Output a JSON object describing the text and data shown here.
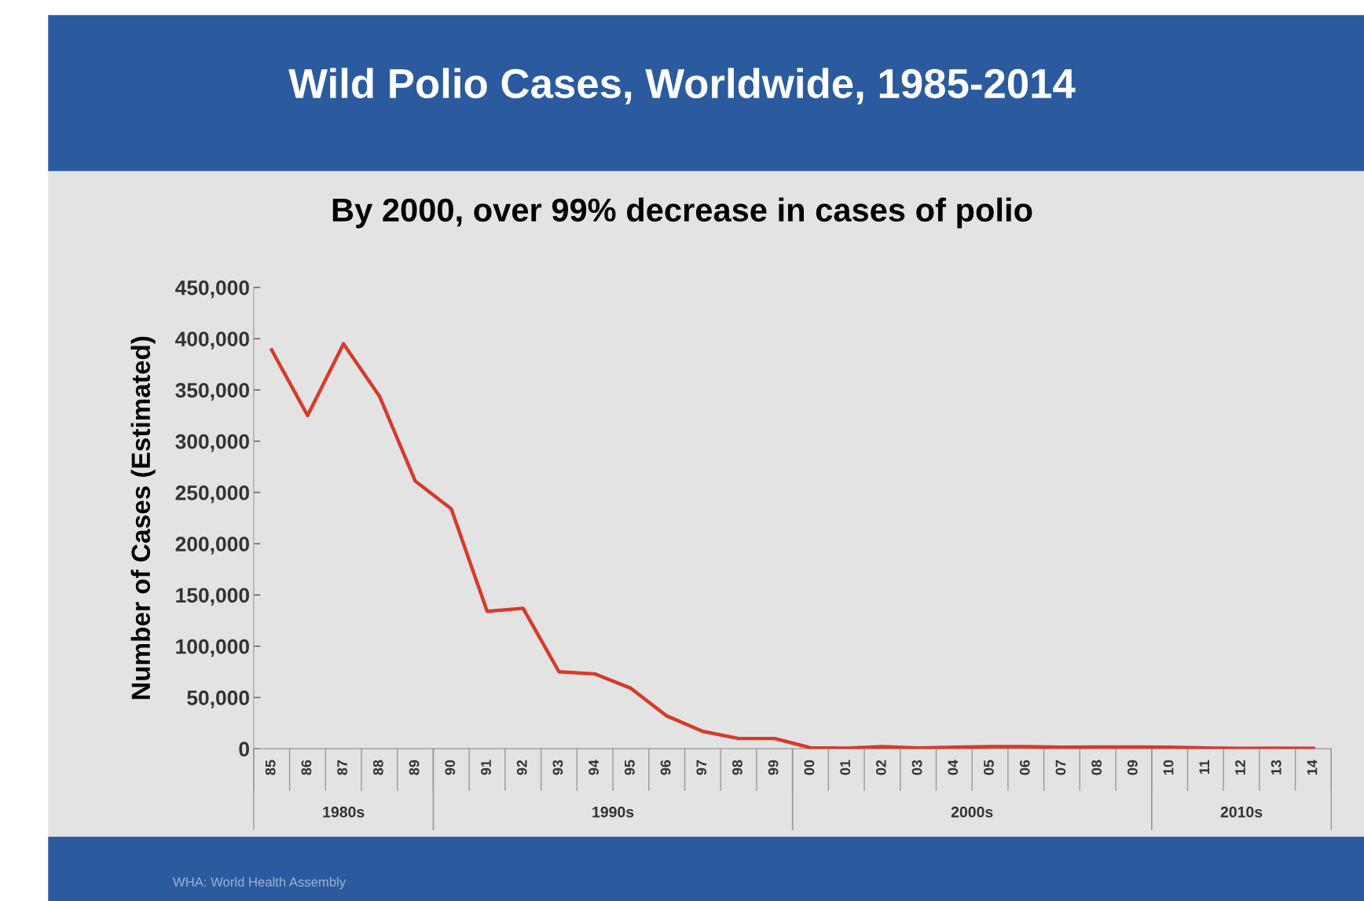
{
  "chart_data": {
    "type": "line",
    "title": "Wild Polio Cases, Worldwide, 1985-2014",
    "subtitle": "By 2000, over 99% decrease in cases of polio",
    "ylabel": "Number of Cases (Estimated)",
    "x": [
      1985,
      1986,
      1987,
      1988,
      1989,
      1990,
      1991,
      1992,
      1993,
      1994,
      1995,
      1996,
      1997,
      1998,
      1999,
      2000,
      2001,
      2002,
      2003,
      2004,
      2005,
      2006,
      2007,
      2008,
      2009,
      2010,
      2011,
      2012,
      2013,
      2014
    ],
    "xlim": [
      1984.5,
      2014.5
    ],
    "xticks": [
      {
        "value": 1985,
        "label": "85"
      },
      {
        "value": 1986,
        "label": "86"
      },
      {
        "value": 1987,
        "label": "87"
      },
      {
        "value": 1988,
        "label": "88"
      },
      {
        "value": 1989,
        "label": "89"
      },
      {
        "value": 1990,
        "label": "90"
      },
      {
        "value": 1991,
        "label": "91"
      },
      {
        "value": 1992,
        "label": "92"
      },
      {
        "value": 1993,
        "label": "93"
      },
      {
        "value": 1994,
        "label": "94"
      },
      {
        "value": 1995,
        "label": "95"
      },
      {
        "value": 1996,
        "label": "96"
      },
      {
        "value": 1997,
        "label": "97"
      },
      {
        "value": 1998,
        "label": "98"
      },
      {
        "value": 1999,
        "label": "99"
      },
      {
        "value": 2000,
        "label": "00"
      },
      {
        "value": 2001,
        "label": "01"
      },
      {
        "value": 2002,
        "label": "02"
      },
      {
        "value": 2003,
        "label": "03"
      },
      {
        "value": 2004,
        "label": "04"
      },
      {
        "value": 2005,
        "label": "05"
      },
      {
        "value": 2006,
        "label": "06"
      },
      {
        "value": 2007,
        "label": "07"
      },
      {
        "value": 2008,
        "label": "08"
      },
      {
        "value": 2009,
        "label": "09"
      },
      {
        "value": 2010,
        "label": "10"
      },
      {
        "value": 2011,
        "label": "11"
      },
      {
        "value": 2012,
        "label": "12"
      },
      {
        "value": 2013,
        "label": "13"
      },
      {
        "value": 2014,
        "label": "14"
      }
    ],
    "series": [
      {
        "color": "#d63a2a",
        "values": [
          389000,
          325000,
          395000,
          344000,
          261000,
          234000,
          134000,
          137000,
          75000,
          73000,
          59000,
          32000,
          17000,
          10000,
          10000,
          1000,
          500,
          2000,
          800,
          1500,
          2000,
          2000,
          1500,
          1700,
          1600,
          1400,
          700,
          300,
          500,
          400
        ]
      }
    ],
    "ylim": [
      0,
      450000
    ],
    "yticks": [
      {
        "value": 0,
        "label": "0"
      },
      {
        "value": 50000,
        "label": "50,000"
      },
      {
        "value": 100000,
        "label": "100,000"
      },
      {
        "value": 150000,
        "label": "150,000"
      },
      {
        "value": 200000,
        "label": "200,000"
      },
      {
        "value": 250000,
        "label": "250,000"
      },
      {
        "value": 300000,
        "label": "300,000"
      },
      {
        "value": 350000,
        "label": "350,000"
      },
      {
        "value": 400000,
        "label": "400,000"
      },
      {
        "value": 450000,
        "label": "450,000"
      }
    ],
    "grid": false,
    "legend": false,
    "marker": "none",
    "line_style": "solid",
    "annotations": [
      "1980s",
      "1990s",
      "2000s",
      "2010s",
      "WHA: World Health Assembly"
    ]
  }
}
